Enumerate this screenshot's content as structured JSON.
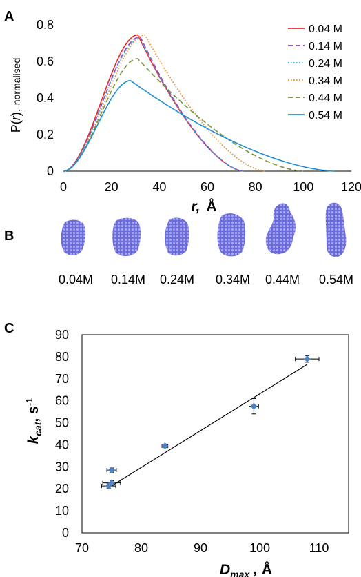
{
  "panels": {
    "a": "A",
    "b": "B",
    "c": "C"
  },
  "chart_data": [
    {
      "type": "line",
      "panel": "A",
      "ylabel_prefix": "P(",
      "ylabel_var": "r",
      "ylabel_mid": "), ",
      "ylabel_suffix": "normalised",
      "xlabel_var": "r,",
      "xlabel_unit": "Å",
      "xlim": [
        0,
        120
      ],
      "ylim": [
        0,
        0.8
      ],
      "xticks": [
        "0",
        "20",
        "40",
        "60",
        "80",
        "100",
        "120"
      ],
      "yticks": [
        "0",
        "0.2",
        "0.4",
        "0.6",
        "0.8"
      ],
      "grid": false,
      "legend_position": "top-right",
      "series": [
        {
          "name": "0.04 M",
          "color": "#e8262b",
          "dash": "solid",
          "dmax": 75,
          "peak": 0.745,
          "r_peak": 31,
          "tail": 0
        },
        {
          "name": "0.14 M",
          "color": "#8f45c8",
          "dash": "dashed",
          "dmax": 75,
          "peak": 0.735,
          "r_peak": 32,
          "tail": 0
        },
        {
          "name": "0.24 M",
          "color": "#2fb3e6",
          "dash": "dotted",
          "dmax": 75,
          "peak": 0.725,
          "r_peak": 32,
          "tail": 0
        },
        {
          "name": "0.34 M",
          "color": "#f08a24",
          "dash": "dotted",
          "dmax": 84,
          "peak": 0.745,
          "r_peak": 34,
          "tail": 0.3
        },
        {
          "name": "0.44 M",
          "color": "#77933c",
          "dash": "dashed",
          "dmax": 100,
          "peak": 0.615,
          "r_peak": 31,
          "tail": 0.6
        },
        {
          "name": "0.54 M",
          "color": "#1f8fd6",
          "dash": "solid",
          "dmax": 113,
          "peak": 0.495,
          "r_peak": 28,
          "tail": 1
        }
      ]
    },
    {
      "type": "scatter",
      "panel": "C",
      "xlabel_main": "D",
      "xlabel_sub": "max",
      "xlabel_sep": " ,",
      "xlabel_unit": "Å",
      "ylabel_main": "k",
      "ylabel_sub": "cat",
      "ylabel_unit": ",  s",
      "ylabel_sup": "-1",
      "xlim": [
        70,
        115
      ],
      "ylim": [
        0,
        90
      ],
      "xticks": [
        "70",
        "80",
        "90",
        "100",
        "110"
      ],
      "yticks": [
        "0",
        "10",
        "20",
        "30",
        "40",
        "50",
        "60",
        "70",
        "80",
        "90"
      ],
      "grid": false,
      "points": [
        {
          "x": 74.5,
          "y": 21.3,
          "xerr": 1.2,
          "yerr": 1.0
        },
        {
          "x": 75.0,
          "y": 22.7,
          "xerr": 1.5,
          "yerr": 1.0
        },
        {
          "x": 75.0,
          "y": 28.5,
          "xerr": 0.8,
          "yerr": 1.0
        },
        {
          "x": 84.0,
          "y": 39.5,
          "xerr": 0.5,
          "yerr": 0.8
        },
        {
          "x": 99.0,
          "y": 57.5,
          "xerr": 0.8,
          "yerr": 3.5
        },
        {
          "x": 108.0,
          "y": 79.0,
          "xerr": 2.0,
          "yerr": 1.5
        }
      ],
      "fit": {
        "x": [
          74.5,
          108
        ],
        "y": [
          20.5,
          76.5
        ]
      },
      "marker_color": "#4f81bd"
    }
  ],
  "models": {
    "color": "#6b6bd9",
    "labels": [
      "0.04M",
      "0.14M",
      "0.24M",
      "0.34M",
      "0.44M",
      "0.54M"
    ]
  }
}
